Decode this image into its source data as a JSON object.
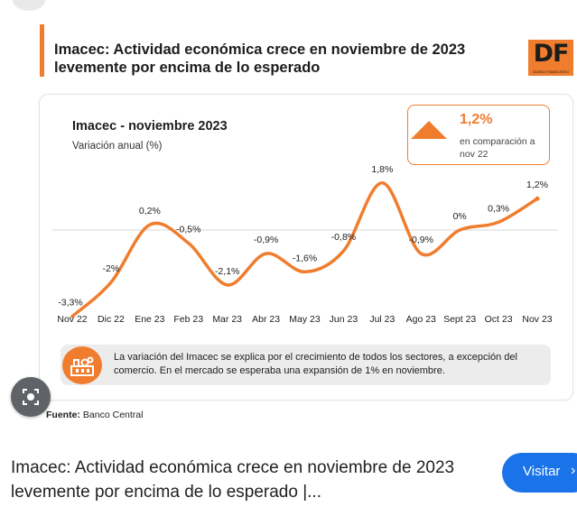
{
  "headline": "Imacec: Actividad económica crece en noviembre de 2023 levemente por encima de lo esperado",
  "logo": {
    "text": "DF",
    "subtext": "DIARIO FINANCIERO"
  },
  "highlight": {
    "value": "1,2%",
    "caption": "en comparación a nov 22",
    "icon": "triangle-up-icon"
  },
  "note": {
    "text": "La variación del Imacec se explica por el crecimiento de todos los sectores, a excepción del comercio. En el mercado se esperaba una expansión de 1% en noviembre.",
    "icon": "industry-icon"
  },
  "source": {
    "label": "Fuente:",
    "value": "Banco Central"
  },
  "caption": "Imacec: Actividad económica crece en noviembre de 2023 levemente por encima de lo esperado |...",
  "visit_label": "Visitar",
  "colors": {
    "accent": "#f07d2e",
    "text": "#1d1d1b",
    "link_button": "#1a73e8"
  },
  "chart_data": {
    "type": "line",
    "title": "Imacec - noviembre 2023",
    "subtitle": "Variación anual (%)",
    "xlabel": "",
    "ylabel": "",
    "categories": [
      "Nov 22",
      "Dic 22",
      "Ene 23",
      "Feb 23",
      "Mar 23",
      "Abr 23",
      "May 23",
      "Jun 23",
      "Jul 23",
      "Ago 23",
      "Sept 23",
      "Oct 23",
      "Nov 23"
    ],
    "values": [
      -3.3,
      -2.0,
      0.2,
      -0.5,
      -2.1,
      -0.9,
      -1.6,
      -0.8,
      1.8,
      -0.9,
      0.0,
      0.3,
      1.2
    ],
    "data_labels": [
      "-3,3%",
      "-2%",
      "0,2%",
      "-0,5%",
      "-2,1%",
      "-0,9%",
      "-1,6%",
      "-0,8%",
      "1,8%",
      "-0,9%",
      "0%",
      "0,3%",
      "1,2%"
    ],
    "zero_line": true,
    "grid": false,
    "ylim": [
      -3.5,
      2.2
    ],
    "line_color": "#f07d2e"
  }
}
